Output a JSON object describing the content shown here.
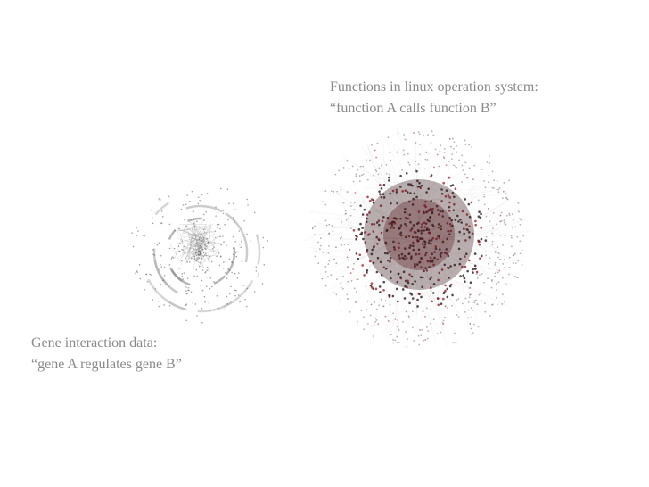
{
  "linux_network": {
    "caption_line1": "Functions in linux operation system:",
    "caption_line2": "“function A calls function B”"
  },
  "gene_network": {
    "caption_line1": "Gene interaction data:",
    "caption_line2": "“gene A regulates gene B”"
  }
}
